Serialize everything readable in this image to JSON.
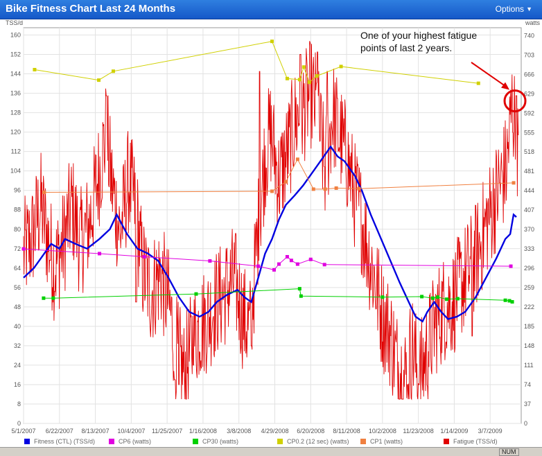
{
  "window": {
    "title": "Bike Fitness Chart Last 24 Months",
    "options_label": "Options"
  },
  "annotation": {
    "line1": "One of your highest fatigue",
    "line2": "points of last 2 years."
  },
  "status": {
    "num": "NUM"
  },
  "chart_data": {
    "type": "line",
    "title": "Bike Fitness Chart Last 24 Months",
    "left_axis": {
      "label": "TSS/d",
      "min": 0,
      "max": 163,
      "ticks": [
        0,
        8,
        16,
        24,
        32,
        40,
        48,
        56,
        64,
        72,
        80,
        88,
        96,
        104,
        112,
        120,
        128,
        136,
        144,
        152,
        160
      ]
    },
    "right_axis": {
      "label": "watts",
      "min": 0,
      "max": 755,
      "ticks": [
        0,
        37,
        74,
        111,
        148,
        185,
        222,
        259,
        296,
        333,
        370,
        407,
        444,
        481,
        518,
        555,
        592,
        629,
        666,
        703,
        740
      ]
    },
    "x_labels": [
      "5/1/2007",
      "6/22/2007",
      "8/13/2007",
      "10/4/2007",
      "11/25/2007",
      "1/16/2008",
      "3/8/2008",
      "4/29/2008",
      "6/20/2008",
      "8/11/2008",
      "10/2/2008",
      "11/23/2008",
      "1/14/2009",
      "3/7/2009"
    ],
    "x_range_days": [
      0,
      721
    ],
    "grid": true,
    "legend_placement": "bottom",
    "series": [
      {
        "name": "Fitness (CTL) (TSS/d)",
        "axis": "left",
        "color": "#0000e0",
        "points": [
          [
            0,
            60
          ],
          [
            15,
            64
          ],
          [
            30,
            70
          ],
          [
            40,
            74
          ],
          [
            52,
            72
          ],
          [
            60,
            76
          ],
          [
            75,
            74
          ],
          [
            92,
            72
          ],
          [
            110,
            76
          ],
          [
            125,
            80
          ],
          [
            135,
            86
          ],
          [
            150,
            78
          ],
          [
            165,
            72
          ],
          [
            180,
            70
          ],
          [
            195,
            67
          ],
          [
            210,
            60
          ],
          [
            225,
            52
          ],
          [
            240,
            46
          ],
          [
            255,
            44
          ],
          [
            268,
            46
          ],
          [
            280,
            50
          ],
          [
            295,
            53
          ],
          [
            310,
            55
          ],
          [
            320,
            52
          ],
          [
            330,
            50
          ],
          [
            340,
            60
          ],
          [
            350,
            70
          ],
          [
            360,
            76
          ],
          [
            370,
            84
          ],
          [
            380,
            90
          ],
          [
            393,
            94
          ],
          [
            405,
            98
          ],
          [
            420,
            104
          ],
          [
            435,
            110
          ],
          [
            445,
            114
          ],
          [
            455,
            110
          ],
          [
            465,
            108
          ],
          [
            480,
            102
          ],
          [
            490,
            96
          ],
          [
            503,
            86
          ],
          [
            515,
            78
          ],
          [
            530,
            68
          ],
          [
            545,
            58
          ],
          [
            558,
            50
          ],
          [
            568,
            44
          ],
          [
            578,
            42
          ],
          [
            585,
            46
          ],
          [
            595,
            50
          ],
          [
            605,
            46
          ],
          [
            615,
            43
          ],
          [
            628,
            44
          ],
          [
            640,
            46
          ],
          [
            655,
            52
          ],
          [
            670,
            60
          ],
          [
            685,
            68
          ],
          [
            698,
            76
          ],
          [
            705,
            78
          ],
          [
            710,
            86
          ],
          [
            714,
            85
          ]
        ]
      },
      {
        "name": "CP6 (watts)",
        "axis": "right",
        "color": "#e000e0",
        "points": [
          [
            0,
            333
          ],
          [
            110,
            324
          ],
          [
            175,
            318
          ],
          [
            270,
            310
          ],
          [
            340,
            300
          ],
          [
            363,
            293
          ],
          [
            370,
            304
          ],
          [
            382,
            318
          ],
          [
            388,
            311
          ],
          [
            397,
            304
          ],
          [
            416,
            313
          ],
          [
            436,
            303
          ],
          [
            706,
            300
          ]
        ]
      },
      {
        "name": "CP30 (watts)",
        "axis": "right",
        "color": "#00d000",
        "points": [
          [
            29,
            239
          ],
          [
            43,
            239
          ],
          [
            250,
            247
          ],
          [
            400,
            257
          ],
          [
            402,
            243
          ],
          [
            520,
            241
          ],
          [
            577,
            242
          ],
          [
            593,
            239
          ],
          [
            600,
            241
          ],
          [
            613,
            237
          ],
          [
            629,
            238
          ],
          [
            698,
            235
          ],
          [
            704,
            234
          ],
          [
            708,
            232
          ]
        ]
      },
      {
        "name": "CP0.2 (12 sec) (watts)",
        "axis": "right",
        "color": "#d0d000",
        "points": [
          [
            16,
            675
          ],
          [
            109,
            655
          ],
          [
            130,
            672
          ],
          [
            360,
            729
          ],
          [
            382,
            658
          ],
          [
            400,
            656
          ],
          [
            406,
            680
          ],
          [
            414,
            651
          ],
          [
            425,
            663
          ],
          [
            460,
            681
          ],
          [
            659,
            649
          ]
        ]
      },
      {
        "name": "CP1 (watts)",
        "axis": "right",
        "color": "#f08040",
        "points": [
          [
            30,
            441
          ],
          [
            360,
            443
          ],
          [
            380,
            461
          ],
          [
            397,
            504
          ],
          [
            420,
            447
          ],
          [
            437,
            447
          ],
          [
            453,
            449
          ],
          [
            486,
            448
          ],
          [
            710,
            459
          ]
        ]
      },
      {
        "name": "Fatigue (TSS/d)",
        "axis": "left",
        "color": "#e00000",
        "style": "noisy",
        "envelope": [
          [
            0,
            70
          ],
          [
            12,
            76
          ],
          [
            25,
            90
          ],
          [
            35,
            76
          ],
          [
            45,
            64
          ],
          [
            58,
            74
          ],
          [
            70,
            90
          ],
          [
            82,
            74
          ],
          [
            95,
            82
          ],
          [
            110,
            104
          ],
          [
            120,
            120
          ],
          [
            127,
            100
          ],
          [
            140,
            78
          ],
          [
            152,
            100
          ],
          [
            162,
            90
          ],
          [
            172,
            64
          ],
          [
            185,
            54
          ],
          [
            198,
            62
          ],
          [
            210,
            50
          ],
          [
            222,
            30
          ],
          [
            233,
            20
          ],
          [
            245,
            34
          ],
          [
            255,
            40
          ],
          [
            268,
            44
          ],
          [
            280,
            50
          ],
          [
            292,
            54
          ],
          [
            305,
            60
          ],
          [
            318,
            44
          ],
          [
            328,
            38
          ],
          [
            340,
            80
          ],
          [
            350,
            110
          ],
          [
            358,
            120
          ],
          [
            370,
            100
          ],
          [
            383,
            112
          ],
          [
            393,
            124
          ],
          [
            403,
            128
          ],
          [
            416,
            136
          ],
          [
            425,
            130
          ],
          [
            437,
            104
          ],
          [
            448,
            128
          ],
          [
            458,
            118
          ],
          [
            468,
            110
          ],
          [
            478,
            96
          ],
          [
            490,
            84
          ],
          [
            500,
            70
          ],
          [
            510,
            58
          ],
          [
            520,
            44
          ],
          [
            530,
            38
          ],
          [
            540,
            26
          ],
          [
            552,
            18
          ],
          [
            563,
            32
          ],
          [
            573,
            18
          ],
          [
            585,
            30
          ],
          [
            597,
            42
          ],
          [
            610,
            48
          ],
          [
            622,
            50
          ],
          [
            635,
            58
          ],
          [
            648,
            64
          ],
          [
            660,
            72
          ],
          [
            670,
            82
          ],
          [
            680,
            90
          ],
          [
            690,
            98
          ],
          [
            700,
            106
          ],
          [
            708,
            132
          ],
          [
            714,
            118
          ],
          [
            717,
            112
          ]
        ],
        "peaks": [
          [
            120,
            135
          ],
          [
            330,
            148
          ],
          [
            342,
            145
          ],
          [
            401,
            152
          ],
          [
            426,
            153
          ],
          [
            440,
            145
          ],
          [
            714,
            135
          ]
        ],
        "troughs": [
          [
            163,
            50
          ],
          [
            219,
            18
          ],
          [
            225,
            16
          ],
          [
            246,
            24
          ],
          [
            330,
            32
          ],
          [
            556,
            16
          ],
          [
            573,
            16
          ],
          [
            650,
            36
          ]
        ]
      }
    ]
  }
}
